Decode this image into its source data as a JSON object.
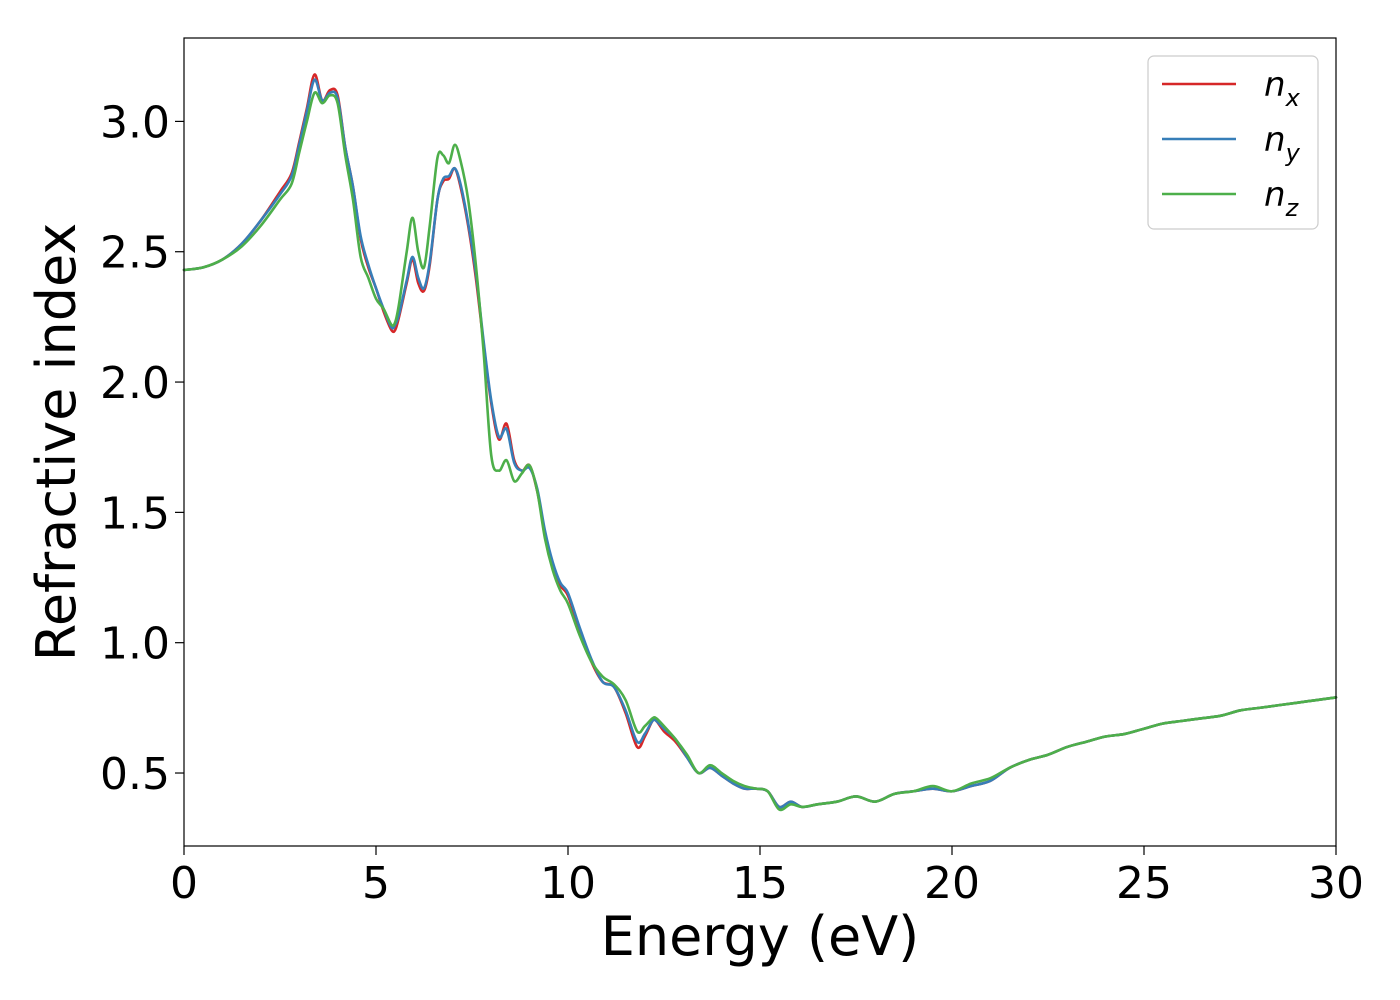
{
  "chart_data": {
    "type": "line",
    "title": "",
    "xlabel": "Energy (eV)",
    "ylabel": "Refractive index",
    "xlim": [
      0,
      30
    ],
    "ylim": [
      0.22,
      3.32
    ],
    "xticks": [
      "0",
      "5",
      "10",
      "15",
      "20",
      "25",
      "30"
    ],
    "yticks": [
      "0.5",
      "1.0",
      "1.5",
      "2.0",
      "2.5",
      "3.0"
    ],
    "grid": false,
    "legend_position": "top-right",
    "series": [
      {
        "name": "n_x",
        "label_base": "n",
        "label_sub": "x",
        "color": "#d62728",
        "x": [
          0,
          0.5,
          1.0,
          1.5,
          2.0,
          2.5,
          2.8,
          3.0,
          3.2,
          3.4,
          3.6,
          3.8,
          4.0,
          4.2,
          4.4,
          4.6,
          4.8,
          5.0,
          5.2,
          5.4,
          5.5,
          5.6,
          5.8,
          5.95,
          6.1,
          6.25,
          6.4,
          6.6,
          6.75,
          6.9,
          7.05,
          7.2,
          7.4,
          7.6,
          7.8,
          8.0,
          8.2,
          8.4,
          8.6,
          8.8,
          9.0,
          9.2,
          9.4,
          9.6,
          9.8,
          10.0,
          10.3,
          10.6,
          10.9,
          11.2,
          11.5,
          11.8,
          12.0,
          12.2,
          12.3,
          12.5,
          12.8,
          13.1,
          13.4,
          13.7,
          14.0,
          14.3,
          14.6,
          14.9,
          15.2,
          15.5,
          15.8,
          16.1,
          16.5,
          17.0,
          17.5,
          18.0,
          18.5,
          19.0,
          19.5,
          20.0,
          20.5,
          21.0,
          21.5,
          22.0,
          22.5,
          23.0,
          23.5,
          24.0,
          24.5,
          25.0,
          25.5,
          26.0,
          26.5,
          27.0,
          27.5,
          28.0,
          28.5,
          29.0,
          29.5,
          30.0
        ],
        "values": [
          2.43,
          2.44,
          2.47,
          2.53,
          2.62,
          2.73,
          2.8,
          2.92,
          3.05,
          3.18,
          3.08,
          3.12,
          3.1,
          2.9,
          2.75,
          2.55,
          2.44,
          2.36,
          2.27,
          2.2,
          2.2,
          2.25,
          2.38,
          2.47,
          2.38,
          2.35,
          2.45,
          2.7,
          2.77,
          2.78,
          2.82,
          2.75,
          2.6,
          2.4,
          2.15,
          1.92,
          1.78,
          1.84,
          1.7,
          1.66,
          1.68,
          1.58,
          1.42,
          1.3,
          1.22,
          1.18,
          1.05,
          0.93,
          0.85,
          0.83,
          0.73,
          0.6,
          0.64,
          0.7,
          0.7,
          0.66,
          0.62,
          0.56,
          0.5,
          0.52,
          0.49,
          0.46,
          0.44,
          0.44,
          0.43,
          0.37,
          0.39,
          0.37,
          0.38,
          0.39,
          0.41,
          0.39,
          0.42,
          0.43,
          0.44,
          0.43,
          0.45,
          0.47,
          0.52,
          0.55,
          0.57,
          0.6,
          0.62,
          0.64,
          0.65,
          0.67,
          0.69,
          0.7,
          0.71,
          0.72,
          0.74,
          0.75,
          0.76,
          0.77,
          0.78,
          0.79
        ]
      },
      {
        "name": "n_y",
        "label_base": "n",
        "label_sub": "y",
        "color": "#377eb8",
        "x": [
          0,
          0.5,
          1.0,
          1.5,
          2.0,
          2.5,
          2.8,
          3.0,
          3.2,
          3.4,
          3.6,
          3.8,
          4.0,
          4.2,
          4.4,
          4.6,
          4.8,
          5.0,
          5.2,
          5.4,
          5.5,
          5.6,
          5.8,
          5.95,
          6.1,
          6.25,
          6.4,
          6.6,
          6.75,
          6.9,
          7.05,
          7.2,
          7.4,
          7.6,
          7.8,
          8.0,
          8.2,
          8.4,
          8.6,
          8.8,
          9.0,
          9.2,
          9.4,
          9.6,
          9.8,
          10.0,
          10.3,
          10.6,
          10.9,
          11.2,
          11.5,
          11.8,
          12.0,
          12.2,
          12.3,
          12.5,
          12.8,
          13.1,
          13.4,
          13.7,
          14.0,
          14.3,
          14.6,
          14.9,
          15.2,
          15.5,
          15.8,
          16.1,
          16.5,
          17.0,
          17.5,
          18.0,
          18.5,
          19.0,
          19.5,
          20.0,
          20.5,
          21.0,
          21.5,
          22.0,
          22.5,
          23.0,
          23.5,
          24.0,
          24.5,
          25.0,
          25.5,
          26.0,
          26.5,
          27.0,
          27.5,
          28.0,
          28.5,
          29.0,
          29.5,
          30.0
        ],
        "values": [
          2.43,
          2.44,
          2.47,
          2.53,
          2.62,
          2.72,
          2.79,
          2.91,
          3.04,
          3.16,
          3.08,
          3.11,
          3.09,
          2.9,
          2.75,
          2.56,
          2.45,
          2.36,
          2.28,
          2.21,
          2.22,
          2.26,
          2.39,
          2.48,
          2.4,
          2.36,
          2.46,
          2.7,
          2.78,
          2.79,
          2.82,
          2.76,
          2.61,
          2.42,
          2.16,
          1.93,
          1.79,
          1.82,
          1.69,
          1.66,
          1.67,
          1.59,
          1.43,
          1.31,
          1.23,
          1.19,
          1.06,
          0.94,
          0.85,
          0.83,
          0.74,
          0.62,
          0.65,
          0.7,
          0.7,
          0.67,
          0.63,
          0.56,
          0.5,
          0.52,
          0.49,
          0.46,
          0.44,
          0.44,
          0.43,
          0.37,
          0.39,
          0.37,
          0.38,
          0.39,
          0.41,
          0.39,
          0.42,
          0.43,
          0.44,
          0.43,
          0.45,
          0.47,
          0.52,
          0.55,
          0.57,
          0.6,
          0.62,
          0.64,
          0.65,
          0.67,
          0.69,
          0.7,
          0.71,
          0.72,
          0.74,
          0.75,
          0.76,
          0.77,
          0.78,
          0.79
        ]
      },
      {
        "name": "n_z",
        "label_base": "n",
        "label_sub": "z",
        "color": "#4daf4a",
        "x": [
          0,
          0.5,
          1.0,
          1.5,
          2.0,
          2.5,
          2.8,
          3.0,
          3.2,
          3.4,
          3.6,
          3.8,
          4.0,
          4.2,
          4.4,
          4.6,
          4.8,
          5.0,
          5.2,
          5.4,
          5.5,
          5.6,
          5.8,
          5.95,
          6.1,
          6.25,
          6.4,
          6.6,
          6.75,
          6.9,
          7.05,
          7.2,
          7.4,
          7.6,
          7.8,
          8.0,
          8.2,
          8.4,
          8.6,
          8.8,
          9.0,
          9.2,
          9.4,
          9.6,
          9.8,
          10.0,
          10.3,
          10.6,
          10.9,
          11.2,
          11.5,
          11.8,
          12.0,
          12.2,
          12.3,
          12.5,
          12.8,
          13.1,
          13.4,
          13.7,
          14.0,
          14.3,
          14.6,
          14.9,
          15.2,
          15.5,
          15.8,
          16.1,
          16.5,
          17.0,
          17.5,
          18.0,
          18.5,
          19.0,
          19.5,
          20.0,
          20.5,
          21.0,
          21.5,
          22.0,
          22.5,
          23.0,
          23.5,
          24.0,
          24.5,
          25.0,
          25.5,
          26.0,
          26.5,
          27.0,
          27.5,
          28.0,
          28.5,
          29.0,
          29.5,
          30.0
        ],
        "values": [
          2.43,
          2.44,
          2.47,
          2.52,
          2.6,
          2.7,
          2.76,
          2.88,
          3.0,
          3.11,
          3.07,
          3.1,
          3.07,
          2.87,
          2.7,
          2.48,
          2.4,
          2.32,
          2.28,
          2.22,
          2.23,
          2.3,
          2.5,
          2.63,
          2.5,
          2.44,
          2.6,
          2.86,
          2.87,
          2.84,
          2.91,
          2.85,
          2.7,
          2.45,
          2.12,
          1.72,
          1.66,
          1.7,
          1.62,
          1.65,
          1.68,
          1.58,
          1.4,
          1.28,
          1.2,
          1.15,
          1.03,
          0.93,
          0.87,
          0.84,
          0.78,
          0.66,
          0.68,
          0.71,
          0.71,
          0.68,
          0.63,
          0.57,
          0.5,
          0.53,
          0.5,
          0.47,
          0.45,
          0.44,
          0.43,
          0.36,
          0.38,
          0.37,
          0.38,
          0.39,
          0.41,
          0.39,
          0.42,
          0.43,
          0.45,
          0.43,
          0.46,
          0.48,
          0.52,
          0.55,
          0.57,
          0.6,
          0.62,
          0.64,
          0.65,
          0.67,
          0.69,
          0.7,
          0.71,
          0.72,
          0.74,
          0.75,
          0.76,
          0.77,
          0.78,
          0.79
        ]
      }
    ]
  }
}
